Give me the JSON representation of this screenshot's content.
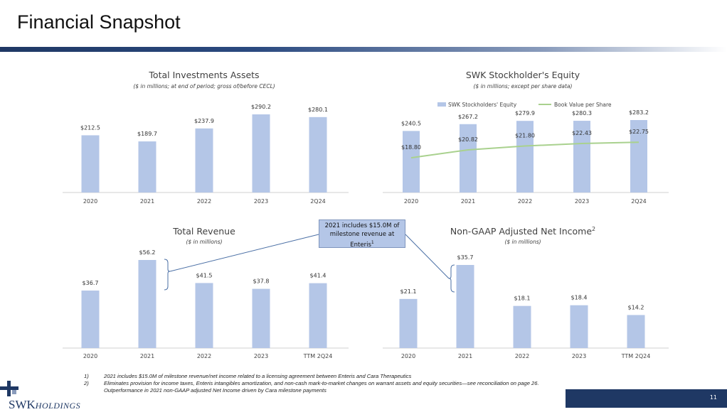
{
  "page": {
    "title": "Financial Snapshot",
    "page_number": "11",
    "callout": {
      "line1": "2021 includes $15.0M of",
      "line2": "milestone revenue at",
      "line3": "Enteris",
      "sup": "1"
    },
    "footnotes": [
      {
        "num": "1)",
        "text": "2021 includes $15.0M of milestone revenue/net income related to a licensing agreement between Enteris and Cara Therapeutics"
      },
      {
        "num": "2)",
        "text": "Eliminates provision for income taxes, Enteris intangibles amortization, and non-cash mark-to-market changes on warrant assets and equity securities—see reconciliation on page 26."
      },
      {
        "num": "",
        "text": "Outperformance in 2021 non-GAAP adjusted Net Income driven by Cara milestone payments"
      }
    ],
    "logo": {
      "main": "SWK",
      "sub": "HOLDINGS",
      "icon": "swk-cross-logo-icon"
    },
    "colors": {
      "bar": "#b4c6e7",
      "line": "#a9d18e",
      "navy": "#1f3864"
    }
  },
  "chart_data": [
    {
      "id": "investments",
      "type": "bar",
      "title": "Total Investments Assets",
      "subtitle": "($ in millions; at end of period; gross of/before CECL)",
      "categories": [
        "2020",
        "2021",
        "2022",
        "2023",
        "2Q24"
      ],
      "values": [
        212.5,
        189.7,
        237.9,
        290.2,
        280.1
      ],
      "labels": [
        "$212.5",
        "$189.7",
        "$237.9",
        "$290.2",
        "$280.1"
      ],
      "ylim": [
        0,
        290.2
      ]
    },
    {
      "id": "equity",
      "type": "bar",
      "title": "SWK Stockholder's Equity",
      "subtitle": "($ in millions; except per share data)",
      "categories": [
        "2020",
        "2021",
        "2022",
        "2023",
        "2Q24"
      ],
      "series": [
        {
          "name": "SWK Stockholders' Equity",
          "type": "bar",
          "values": [
            240.5,
            267.2,
            279.9,
            280.3,
            283.2
          ],
          "labels": [
            "$240.5",
            "$267.2",
            "$279.9",
            "$280.3",
            "$283.2"
          ]
        },
        {
          "name": "Book Value per Share",
          "type": "line",
          "values": [
            18.8,
            20.82,
            21.8,
            22.43,
            22.75
          ],
          "labels": [
            "$18.80",
            "$20.82",
            "$21.80",
            "$22.43",
            "$22.75"
          ]
        }
      ],
      "legend": "top",
      "ylim": [
        0,
        283.2
      ]
    },
    {
      "id": "revenue",
      "type": "bar",
      "title": "Total Revenue",
      "subtitle": "($ in millions)",
      "categories": [
        "2020",
        "2021",
        "2022",
        "2023",
        "TTM 2Q24"
      ],
      "values": [
        36.7,
        56.2,
        41.5,
        37.8,
        41.4
      ],
      "labels": [
        "$36.7",
        "$56.2",
        "$41.5",
        "$37.8",
        "$41.4"
      ],
      "ylim": [
        0,
        56.2
      ]
    },
    {
      "id": "netincome",
      "type": "bar",
      "title": "Non-GAAP Adjusted Net Income",
      "title_sup": "2",
      "subtitle": "($ in millions)",
      "categories": [
        "2020",
        "2021",
        "2022",
        "2023",
        "TTM 2Q24"
      ],
      "values": [
        21.1,
        35.7,
        18.1,
        18.4,
        14.2
      ],
      "labels": [
        "$21.1",
        "$35.7",
        "$18.1",
        "$18.4",
        "$14.2"
      ],
      "ylim": [
        0,
        35.7
      ]
    }
  ]
}
